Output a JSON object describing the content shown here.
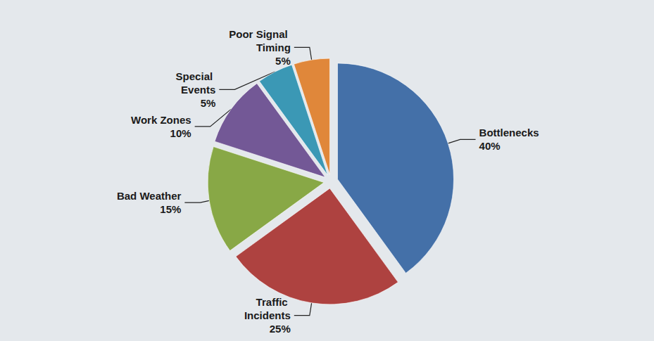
{
  "chart_data": {
    "type": "pie",
    "categories": [
      "Bottlenecks",
      "Traffic Incidents",
      "Bad Weather",
      "Work Zones",
      "Special Events",
      "Poor Signal Timing"
    ],
    "values": [
      40,
      25,
      15,
      10,
      5,
      5
    ],
    "value_labels": [
      "40%",
      "25%",
      "15%",
      "10%",
      "5%",
      "5%"
    ],
    "colors": [
      "#4470a8",
      "#ae4240",
      "#88a846",
      "#735896",
      "#3b98b5",
      "#e0873a"
    ],
    "data_labels": true
  }
}
